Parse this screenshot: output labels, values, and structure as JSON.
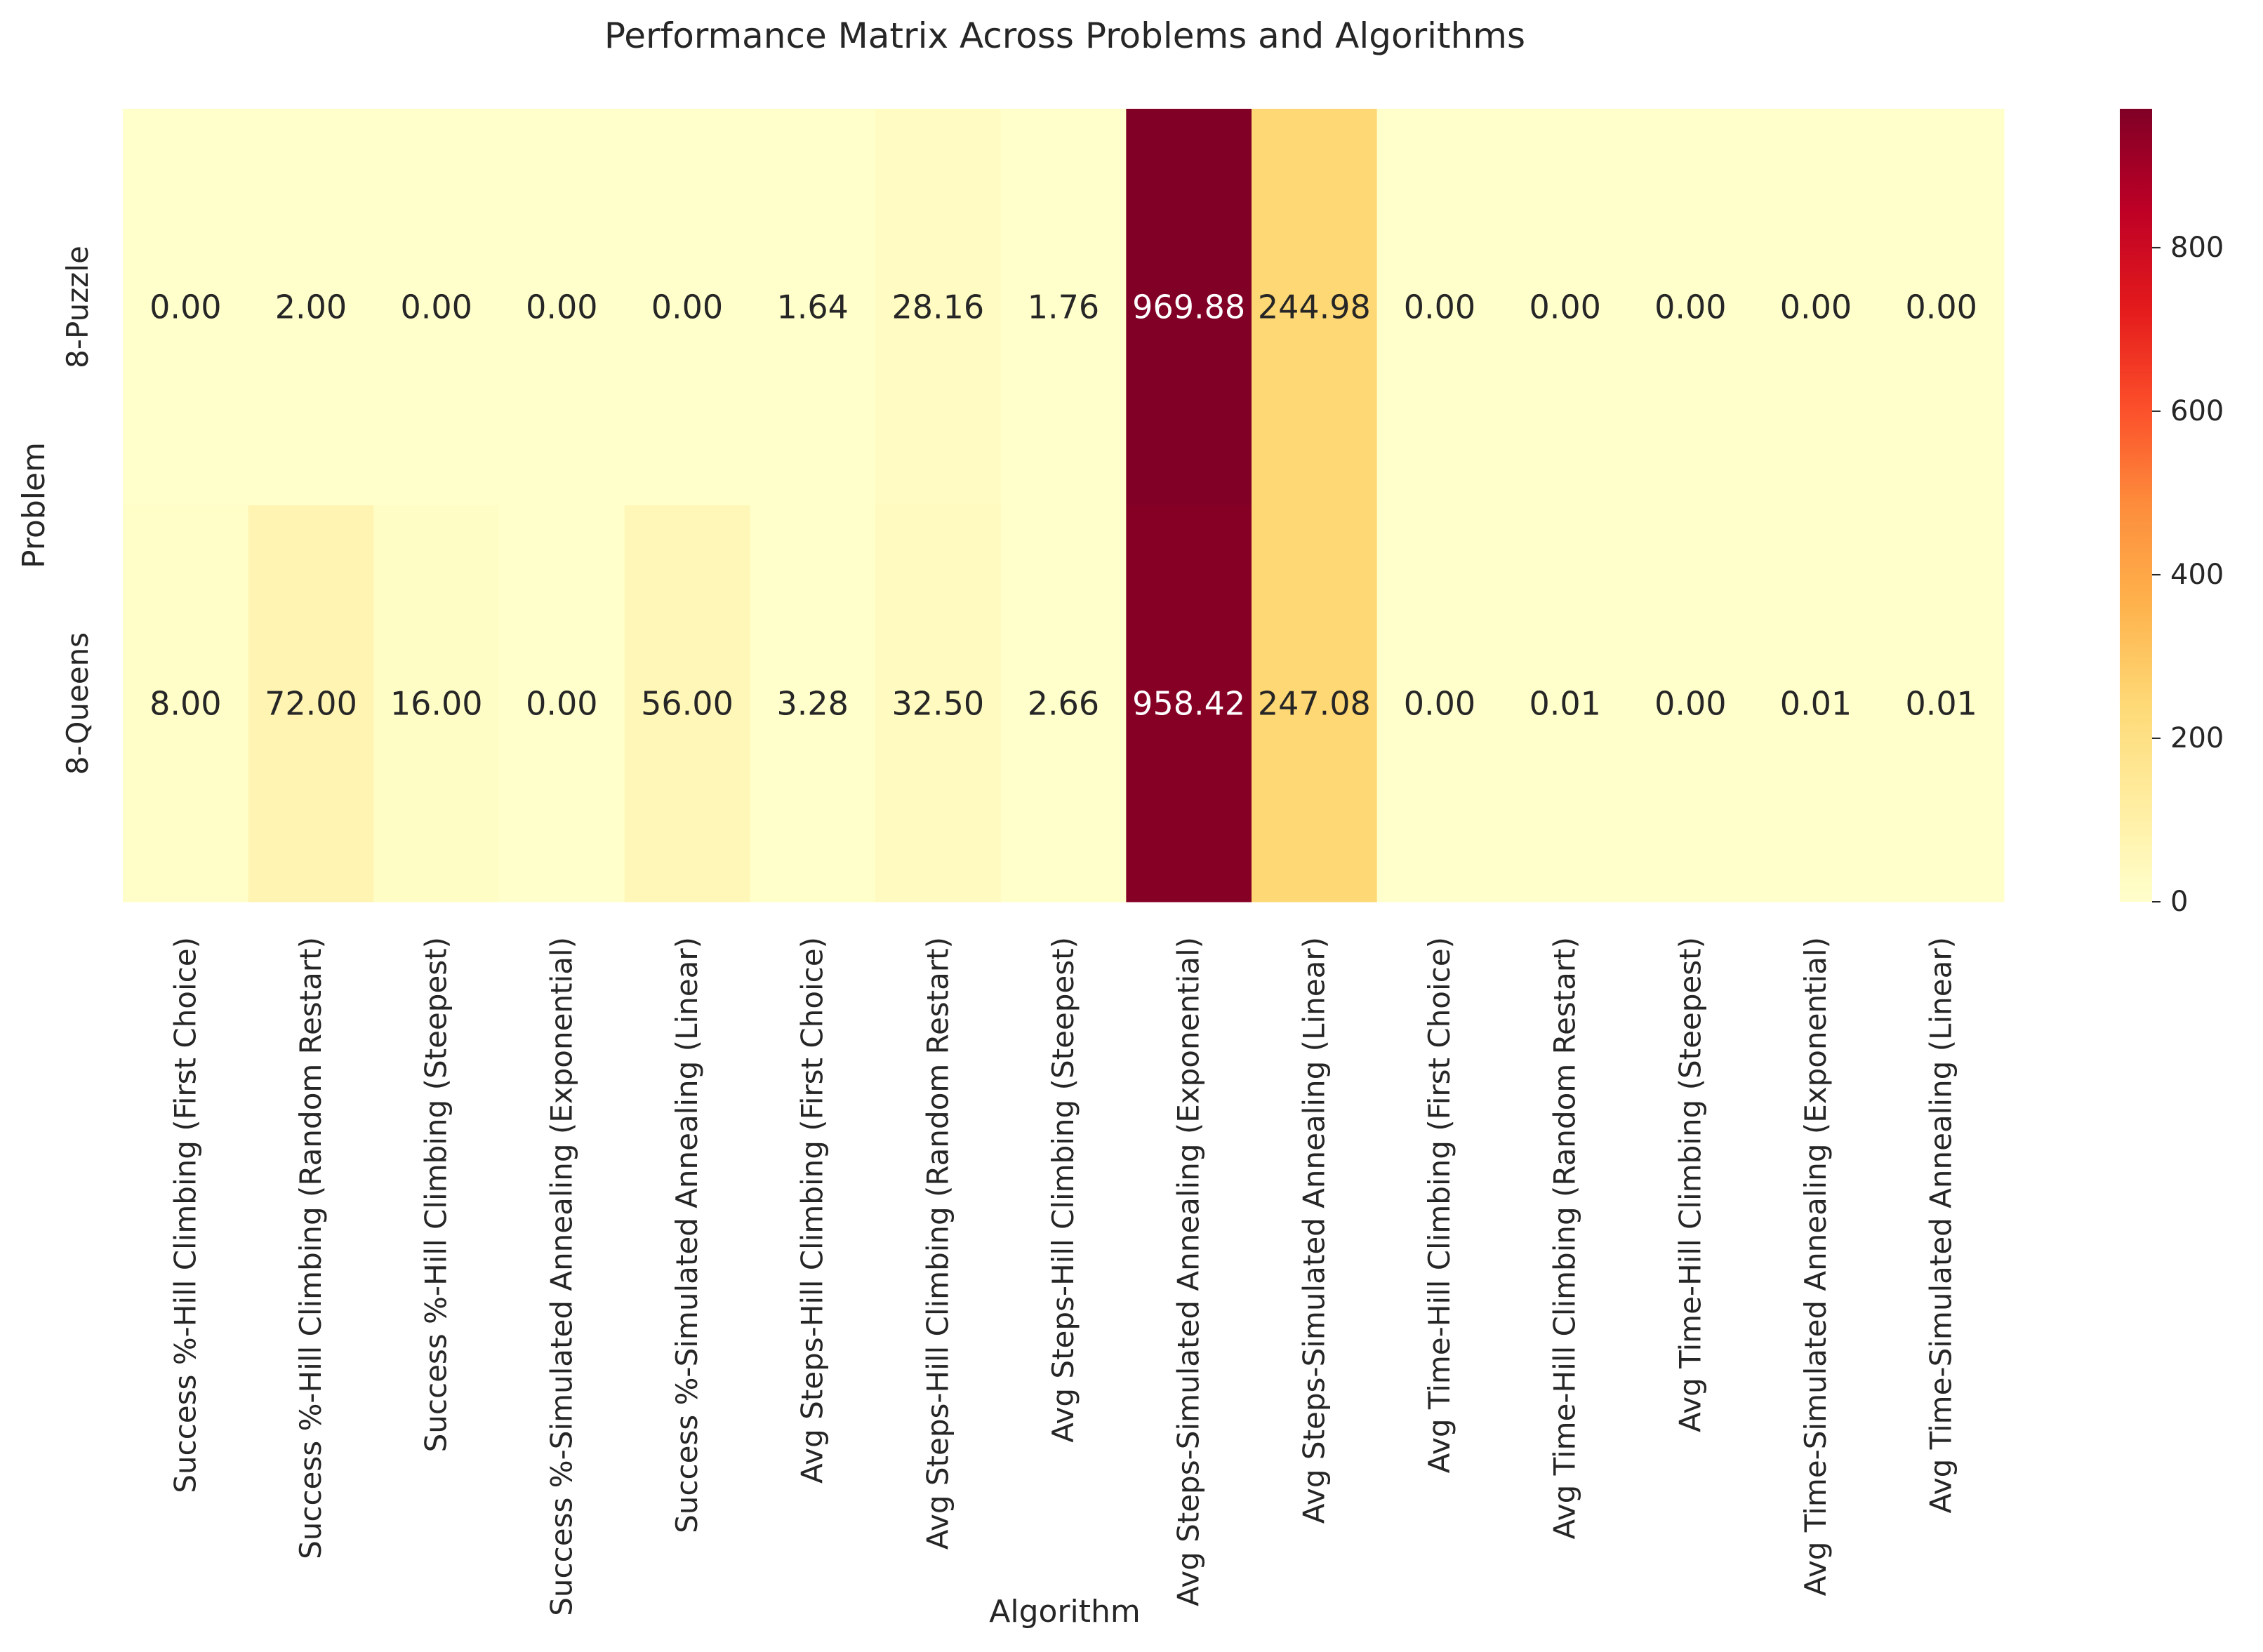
{
  "chart_data": {
    "type": "heatmap",
    "title": "Performance Matrix Across Problems and Algorithms",
    "xlabel": "Algorithm",
    "ylabel": "Problem",
    "rows": [
      "8-Puzzle",
      "8-Queens"
    ],
    "columns": [
      "Success %-Hill Climbing (First Choice)",
      "Success %-Hill Climbing (Random Restart)",
      "Success %-Hill Climbing (Steepest)",
      "Success %-Simulated Annealing (Exponential)",
      "Success %-Simulated Annealing (Linear)",
      "Avg Steps-Hill Climbing (First Choice)",
      "Avg Steps-Hill Climbing (Random Restart)",
      "Avg Steps-Hill Climbing (Steepest)",
      "Avg Steps-Simulated Annealing (Exponential)",
      "Avg Steps-Simulated Annealing (Linear)",
      "Avg Time-Hill Climbing (First Choice)",
      "Avg Time-Hill Climbing (Random Restart)",
      "Avg Time-Hill Climbing (Steepest)",
      "Avg Time-Simulated Annealing (Exponential)",
      "Avg Time-Simulated Annealing (Linear)"
    ],
    "values": [
      [
        0.0,
        2.0,
        0.0,
        0.0,
        0.0,
        1.64,
        28.16,
        1.76,
        969.88,
        244.98,
        0.0,
        0.0,
        0.0,
        0.0,
        0.0
      ],
      [
        8.0,
        72.0,
        16.0,
        0.0,
        56.0,
        3.28,
        32.5,
        2.66,
        958.42,
        247.08,
        0.0,
        0.01,
        0.0,
        0.01,
        0.01
      ]
    ],
    "value_format": "0.00",
    "colormap": "YlOrRd",
    "colorbar": {
      "min": 0,
      "max": 969.88,
      "ticks": [
        0,
        200,
        400,
        600,
        800
      ]
    },
    "colors": [
      "#ffffcc",
      "#ffeda0",
      "#fed976",
      "#feb24c",
      "#fd8d3c",
      "#fc4e2a",
      "#e31a1c",
      "#bd0026",
      "#800026"
    ]
  }
}
